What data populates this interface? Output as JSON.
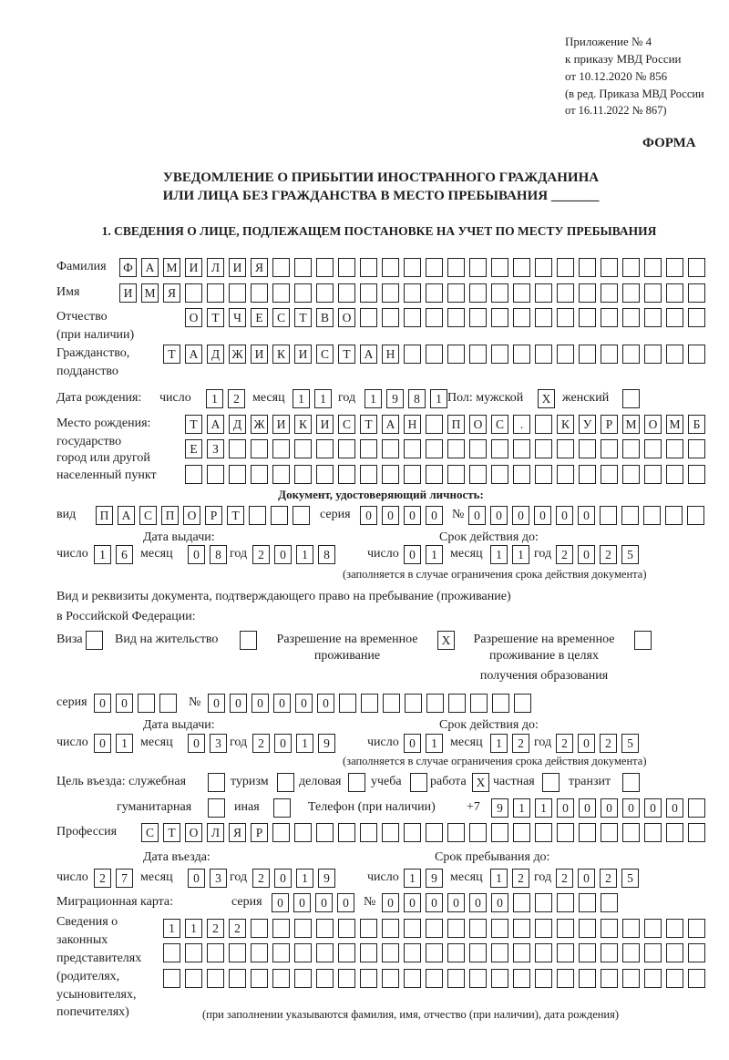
{
  "header": {
    "appendix": "Приложение № 4",
    "order": "к приказу МВД России",
    "order_date": "от 10.12.2020 № 856",
    "edition_1": "(в ред. Приказа МВД России",
    "edition_2": "от 16.11.2022 № 867)",
    "form_label": "ФОРМА"
  },
  "title": {
    "line1": "УВЕДОМЛЕНИЕ О ПРИБЫТИИ ИНОСТРАННОГО ГРАЖДАНИНА",
    "line2": "ИЛИ ЛИЦА БЕЗ ГРАЖДАНСТВА В МЕСТО ПРЕБЫВАНИЯ _______"
  },
  "section1": {
    "title": "1. СВЕДЕНИЯ О ЛИЦЕ, ПОДЛЕЖАЩЕМ ПОСТАНОВКЕ НА УЧЕТ ПО МЕСТУ ПРЕБЫВАНИЯ",
    "labels": {
      "surname": "Фамилия",
      "name": "Имя",
      "patronymic_1": "Отчество",
      "patronymic_2": "(при наличии)",
      "citizenship_1": "Гражданство,",
      "citizenship_2": "подданство",
      "dob": "Дата рождения:",
      "day": "число",
      "month": "месяц",
      "year": "год",
      "sex_male": "Пол: мужской",
      "sex_female": "женский",
      "birthplace_1": "Место рождения:",
      "birthplace_2": "государство",
      "birthplace_3": "город или другой",
      "birthplace_4": "населенный пункт",
      "id_doc": "Документ, удостоверяющий личность:",
      "kind": "вид",
      "series": "серия",
      "number": "№",
      "issue_date": "Дата выдачи:",
      "valid_until": "Срок действия до:",
      "validity_note": "(заполняется в случае ограничения срока действия документа)",
      "stay_doc_1": "Вид и реквизиты документа, подтверждающего право на пребывание (проживание)",
      "stay_doc_2": "в Российской Федерации:",
      "visa": "Виза",
      "residence_permit": "Вид на жительство",
      "trp_1": "Разрешение на временное",
      "trp_2": "проживание",
      "trp_edu_1": "Разрешение на временное",
      "trp_edu_2": "проживание в целях",
      "trp_edu_3": "получения образования",
      "purpose": "Цель въезда: служебная",
      "tourism": "туризм",
      "business": "деловая",
      "study": "учеба",
      "work": "работа",
      "private": "частная",
      "transit": "транзит",
      "humanitarian": "гуманитарная",
      "other": "иная",
      "phone": "Телефон (при наличии)",
      "phone_prefix": "+7",
      "profession": "Профессия",
      "entry_date": "Дата въезда:",
      "stay_until": "Срок пребывания до:",
      "migration_card": "Миграционная карта:",
      "reps_1": "Сведения о",
      "reps_2": "законных",
      "reps_3": "представителях",
      "reps_4": "(родителях,",
      "reps_5": "усыновителях,",
      "reps_6": "попечителях)",
      "reps_note": "(при заполнении указываются фамилия, имя, отчество (при наличии), дата рождения)"
    },
    "values": {
      "surname": "ФАМИЛИЯ",
      "name": "ИМЯ",
      "patronymic": "ОТЧЕСТВО",
      "citizenship": "ТАДЖИКИСТАН",
      "dob_day": "12",
      "dob_month": "11",
      "dob_year": "1981",
      "sex_male": "X",
      "sex_female": "",
      "birthplace_1": "ТАДЖИКИСТАН ПОС. КУРМОМБ",
      "birthplace_2": "ЕЗ",
      "birthplace_3": "",
      "id_kind": "ПАСПОРТ",
      "id_series": "0000",
      "id_number": "000000",
      "id_issue_day": "16",
      "id_issue_month": "08",
      "id_issue_year": "2018",
      "id_valid_day": "01",
      "id_valid_month": "11",
      "id_valid_year": "2025",
      "visa": "",
      "residence_permit": "",
      "trp": "X",
      "trp_edu": "",
      "stay_series": "00",
      "stay_number": "000000",
      "stay_issue_day": "01",
      "stay_issue_month": "03",
      "stay_issue_year": "2019",
      "stay_valid_day": "01",
      "stay_valid_month": "12",
      "stay_valid_year": "2025",
      "purpose_official": "",
      "purpose_tourism": "",
      "purpose_business": "",
      "purpose_study": "",
      "purpose_work": "X",
      "purpose_private": "",
      "purpose_transit": "",
      "purpose_humanitarian": "",
      "purpose_other": "",
      "phone": "911000000",
      "profession": "СТОЛЯР",
      "entry_day": "27",
      "entry_month": "03",
      "entry_year": "2019",
      "stay_until_day": "19",
      "stay_until_month": "12",
      "stay_until_year": "2025",
      "mig_series": "0000",
      "mig_number": "000000",
      "reps_1": "1122",
      "reps_2": "",
      "reps_3": ""
    }
  }
}
